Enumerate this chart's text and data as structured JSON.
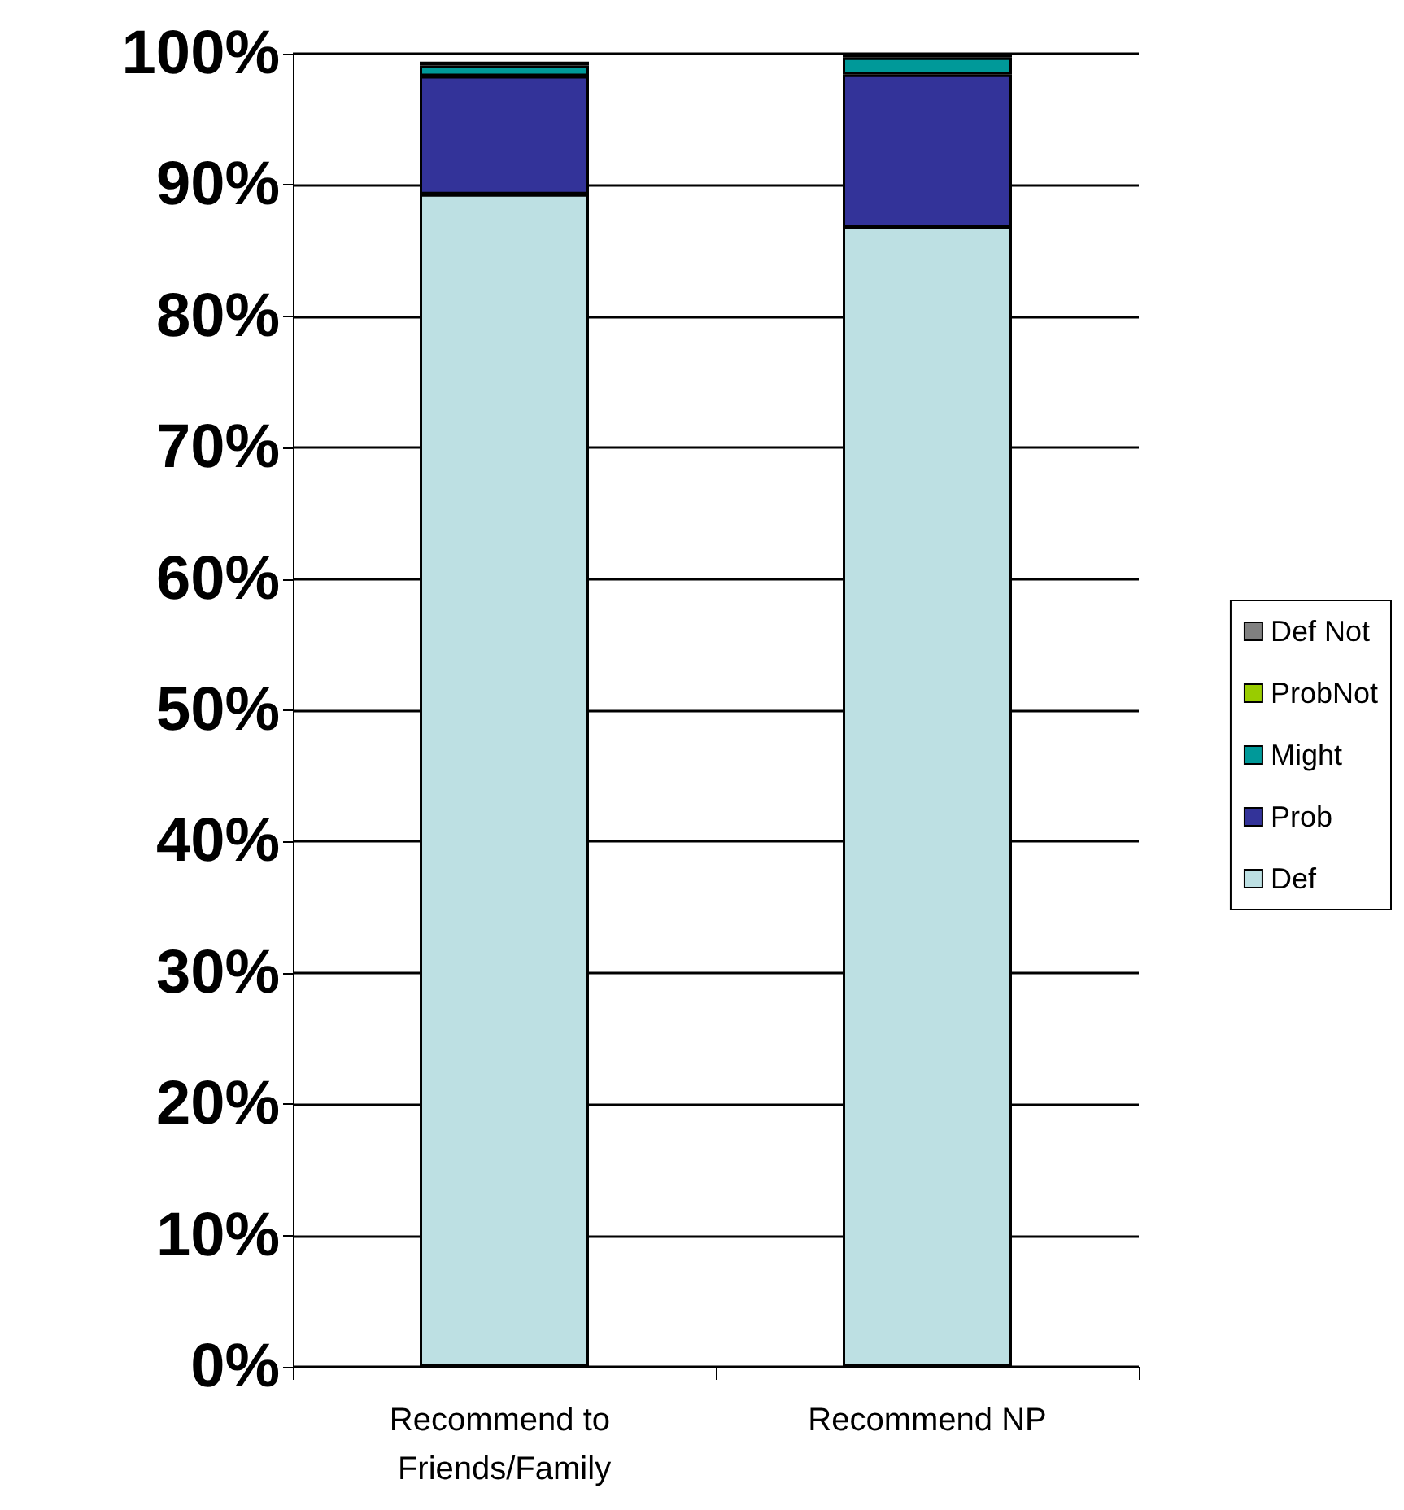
{
  "chart_data": {
    "type": "bar",
    "stacked": true,
    "categories": [
      "Recommend to Friends/Family",
      "Recommend NP"
    ],
    "series": [
      {
        "name": "Def",
        "color": "#bde0e3",
        "values": [
          89.3,
          86.8
        ]
      },
      {
        "name": "Prob",
        "color": "#333399",
        "values": [
          9.0,
          11.6
        ]
      },
      {
        "name": "Might",
        "color": "#009999",
        "values": [
          0.8,
          1.3
        ]
      },
      {
        "name": "ProbNot",
        "color": "#99cc00",
        "values": [
          0,
          0
        ]
      },
      {
        "name": "Def Not",
        "color": "#808080",
        "values": [
          0.3,
          0.3
        ]
      }
    ],
    "ylim": [
      0,
      100
    ],
    "yticks": [
      {
        "value": 0,
        "label": "0%"
      },
      {
        "value": 10,
        "label": "10%"
      },
      {
        "value": 20,
        "label": "20%"
      },
      {
        "value": 30,
        "label": "30%"
      },
      {
        "value": 40,
        "label": "40%"
      },
      {
        "value": 50,
        "label": "50%"
      },
      {
        "value": 60,
        "label": "60%"
      },
      {
        "value": 70,
        "label": "70%"
      },
      {
        "value": 80,
        "label": "80%"
      },
      {
        "value": 90,
        "label": "90%"
      },
      {
        "value": 100,
        "label": "100%"
      }
    ],
    "grid": "y",
    "legend": "right"
  }
}
